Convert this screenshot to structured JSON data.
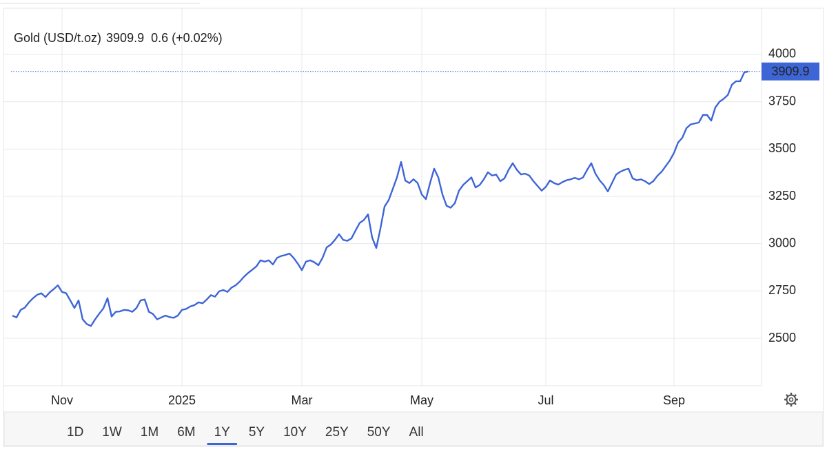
{
  "chart_data": {
    "type": "line",
    "series": [
      {
        "name": "Gold (USD/t.oz)",
        "color": "#3e65d6",
        "values": [
          2620,
          2610,
          2650,
          2662,
          2690,
          2712,
          2730,
          2738,
          2718,
          2742,
          2760,
          2780,
          2745,
          2738,
          2700,
          2660,
          2700,
          2600,
          2575,
          2565,
          2600,
          2630,
          2658,
          2712,
          2615,
          2640,
          2642,
          2650,
          2648,
          2640,
          2660,
          2700,
          2705,
          2640,
          2628,
          2600,
          2610,
          2620,
          2612,
          2608,
          2620,
          2650,
          2655,
          2668,
          2675,
          2690,
          2685,
          2705,
          2728,
          2720,
          2748,
          2755,
          2745,
          2768,
          2780,
          2800,
          2825,
          2845,
          2862,
          2880,
          2912,
          2905,
          2912,
          2890,
          2925,
          2935,
          2940,
          2948,
          2925,
          2895,
          2860,
          2905,
          2912,
          2902,
          2886,
          2925,
          2980,
          2995,
          3020,
          3050,
          3020,
          3015,
          3028,
          3070,
          3110,
          3125,
          3155,
          3032,
          2977,
          3080,
          3196,
          3230,
          3290,
          3350,
          3432,
          3334,
          3320,
          3340,
          3320,
          3260,
          3235,
          3320,
          3396,
          3350,
          3260,
          3200,
          3190,
          3214,
          3280,
          3310,
          3330,
          3350,
          3297,
          3310,
          3340,
          3377,
          3360,
          3365,
          3330,
          3345,
          3390,
          3425,
          3390,
          3366,
          3370,
          3360,
          3330,
          3305,
          3280,
          3300,
          3334,
          3320,
          3312,
          3325,
          3335,
          3340,
          3348,
          3340,
          3350,
          3390,
          3425,
          3370,
          3335,
          3310,
          3276,
          3320,
          3365,
          3380,
          3390,
          3396,
          3345,
          3335,
          3340,
          3330,
          3315,
          3330,
          3359,
          3380,
          3410,
          3440,
          3480,
          3535,
          3559,
          3610,
          3630,
          3635,
          3640,
          3680,
          3680,
          3650,
          3720,
          3750,
          3765,
          3785,
          3840,
          3858,
          3858,
          3905,
          3909.9
        ]
      }
    ],
    "categories": [
      null,
      null,
      null,
      null,
      null,
      null,
      null,
      null,
      null,
      null,
      null,
      null,
      "Nov",
      null,
      null,
      null,
      null,
      null,
      null,
      null,
      null,
      null,
      null,
      null,
      null,
      null,
      null,
      null,
      null,
      null,
      null,
      null,
      null,
      null,
      null,
      null,
      null,
      null,
      null,
      null,
      null,
      "2025",
      null,
      null,
      null,
      null,
      null,
      null,
      null,
      null,
      null,
      null,
      null,
      null,
      null,
      null,
      null,
      null,
      null,
      null,
      null,
      null,
      null,
      null,
      null,
      null,
      null,
      null,
      null,
      null,
      "Mar",
      null,
      null,
      null,
      null,
      null,
      null,
      null,
      null,
      null,
      null,
      null,
      null,
      null,
      null,
      null,
      null,
      null,
      null,
      null,
      null,
      null,
      null,
      null,
      null,
      null,
      null,
      null,
      null,
      "May",
      null,
      null,
      null,
      null,
      null,
      null,
      null,
      null,
      null,
      null,
      null,
      null,
      null,
      null,
      null,
      null,
      null,
      null,
      null,
      null,
      null,
      null,
      null,
      null,
      null,
      null,
      null,
      null,
      null,
      "Jul",
      null,
      null,
      null,
      null,
      null,
      null,
      null,
      null,
      null,
      null,
      null,
      null,
      null,
      null,
      null,
      null,
      null,
      null,
      null,
      null,
      null,
      null,
      null,
      null,
      null,
      null,
      null,
      null,
      null,
      null,
      "Sep",
      null,
      null,
      null,
      null,
      null,
      null,
      null,
      null,
      null,
      null,
      null,
      null,
      null,
      null,
      null,
      null,
      null,
      null
    ],
    "price": 3909.9,
    "price_color": "#3e65d6",
    "change": "0.6 (+0.02%)",
    "change_color": "#5cb34a",
    "ylim": [
      2250,
      4250
    ],
    "yticks": [
      2500,
      2750,
      3000,
      3250,
      3500,
      3750,
      4000
    ],
    "grid": true,
    "ranges": [
      "1D",
      "1W",
      "1M",
      "6M",
      "1Y",
      "5Y",
      "10Y",
      "25Y",
      "50Y",
      "All"
    ],
    "selected_range": "1Y"
  }
}
